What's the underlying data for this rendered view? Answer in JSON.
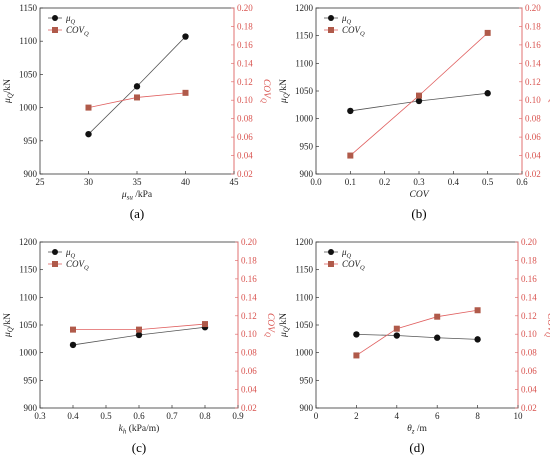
{
  "colors": {
    "mu_series": "#111111",
    "cov_series": "#b05a4a",
    "right_axis": "#e07070",
    "left_axis": "#333333"
  },
  "chart_data": [
    {
      "type": "line",
      "panel_label": "(a)",
      "xlabel_main": "μ",
      "xlabel_sub": "su",
      "xlabel_rest": " /kPa",
      "ylabel_main": "μ",
      "ylabel_sub": "Q",
      "ylabel_rest": "/kN",
      "y2label_main": "COV",
      "y2label_sub": "Q",
      "xlim": [
        25,
        45
      ],
      "xticks": [
        25,
        30,
        35,
        40,
        45
      ],
      "xtick_labels": [
        "25",
        "30",
        "35",
        "40",
        "45"
      ],
      "ylim": [
        900,
        1150
      ],
      "yticks": [
        900,
        950,
        1000,
        1050,
        1100,
        1150
      ],
      "y2lim": [
        0.02,
        0.2
      ],
      "y2ticks": [
        0.02,
        0.04,
        0.06,
        0.08,
        0.1,
        0.12,
        0.14,
        0.16,
        0.18,
        0.2
      ],
      "y2tick_labels": [
        "0.02",
        "0.04",
        "0.06",
        "0.08",
        "0.10",
        "0.12",
        "0.14",
        "0.16",
        "0.18",
        "0.20"
      ],
      "legend_position": "top-left",
      "series": [
        {
          "name_main": "μ",
          "name_sub": "Q",
          "axis": "left",
          "marker": "circle",
          "x": [
            30,
            35,
            40
          ],
          "values": [
            960,
            1032,
            1107
          ]
        },
        {
          "name_main": "COV",
          "name_sub": "Q",
          "axis": "right",
          "marker": "square",
          "x": [
            30,
            35,
            40
          ],
          "values": [
            0.092,
            0.103,
            0.108
          ]
        }
      ]
    },
    {
      "type": "line",
      "panel_label": "(b)",
      "xlabel_main": "COV",
      "xlabel_sub": "",
      "xlabel_rest": "",
      "ylabel_main": "μ",
      "ylabel_sub": "Q",
      "ylabel_rest": "/kN",
      "y2label_main": "COV",
      "y2label_sub": "Q",
      "xlim": [
        0,
        0.6
      ],
      "xticks": [
        0,
        0.1,
        0.2,
        0.3,
        0.4,
        0.5,
        0.6
      ],
      "xtick_labels": [
        "0.0",
        "0.1",
        "0.2",
        "0.3",
        "0.4",
        "0.5",
        "0.6"
      ],
      "ylim": [
        900,
        1200
      ],
      "yticks": [
        900,
        950,
        1000,
        1050,
        1100,
        1150,
        1200
      ],
      "y2lim": [
        0.02,
        0.2
      ],
      "y2ticks": [
        0.02,
        0.04,
        0.06,
        0.08,
        0.1,
        0.12,
        0.14,
        0.16,
        0.18,
        0.2
      ],
      "y2tick_labels": [
        "0.02",
        "0.04",
        "0.06",
        "0.08",
        "0.10",
        "0.12",
        "0.14",
        "0.16",
        "0.18",
        "0.20"
      ],
      "legend_position": "top-left",
      "series": [
        {
          "name_main": "μ",
          "name_sub": "Q",
          "axis": "left",
          "marker": "circle",
          "x": [
            0.1,
            0.3,
            0.5
          ],
          "values": [
            1014,
            1032,
            1046
          ]
        },
        {
          "name_main": "COV",
          "name_sub": "Q",
          "axis": "right",
          "marker": "square",
          "x": [
            0.1,
            0.3,
            0.5
          ],
          "values": [
            0.04,
            0.105,
            0.173
          ]
        }
      ]
    },
    {
      "type": "line",
      "panel_label": "(c)",
      "xlabel_main": "k",
      "xlabel_sub": "h",
      "xlabel_rest": " (kPa/m)",
      "ylabel_main": "μ",
      "ylabel_sub": "Q",
      "ylabel_rest": "/kN",
      "y2label_main": "COV",
      "y2label_sub": "Q",
      "xlim": [
        0.3,
        0.9
      ],
      "xticks": [
        0.3,
        0.4,
        0.5,
        0.6,
        0.7,
        0.8,
        0.9
      ],
      "xtick_labels": [
        "0.3",
        "0.4",
        "0.5",
        "0.6",
        "0.7",
        "0.8",
        "0.9"
      ],
      "ylim": [
        900,
        1200
      ],
      "yticks": [
        900,
        950,
        1000,
        1050,
        1100,
        1150,
        1200
      ],
      "y2lim": [
        0.02,
        0.2
      ],
      "y2ticks": [
        0.02,
        0.04,
        0.06,
        0.08,
        0.1,
        0.12,
        0.14,
        0.16,
        0.18,
        0.2
      ],
      "y2tick_labels": [
        "0.02",
        "0.04",
        "0.06",
        "0.08",
        "0.10",
        "0.12",
        "0.14",
        "0.16",
        "0.18",
        "0.20"
      ],
      "legend_position": "top-left",
      "series": [
        {
          "name_main": "μ",
          "name_sub": "Q",
          "axis": "left",
          "marker": "circle",
          "x": [
            0.4,
            0.6,
            0.8
          ],
          "values": [
            1014,
            1032,
            1046
          ]
        },
        {
          "name_main": "COV",
          "name_sub": "Q",
          "axis": "right",
          "marker": "square",
          "x": [
            0.4,
            0.6,
            0.8
          ],
          "values": [
            0.105,
            0.105,
            0.111
          ]
        }
      ]
    },
    {
      "type": "line",
      "panel_label": "(d)",
      "xlabel_main": "θ",
      "xlabel_sub": "z",
      "xlabel_rest": " /m",
      "ylabel_main": "μ",
      "ylabel_sub": "Q",
      "ylabel_rest": "/kN",
      "y2label_main": "COV",
      "y2label_sub": "Q",
      "xlim": [
        0,
        10
      ],
      "xticks": [
        0,
        2,
        4,
        6,
        8,
        10
      ],
      "xtick_labels": [
        "0",
        "2",
        "4",
        "6",
        "8",
        "10"
      ],
      "ylim": [
        900,
        1200
      ],
      "yticks": [
        900,
        950,
        1000,
        1050,
        1100,
        1150,
        1200
      ],
      "y2lim": [
        0.02,
        0.2
      ],
      "y2ticks": [
        0.02,
        0.04,
        0.06,
        0.08,
        0.1,
        0.12,
        0.14,
        0.16,
        0.18,
        0.2
      ],
      "y2tick_labels": [
        "0.02",
        "0.04",
        "0.06",
        "0.08",
        "0.10",
        "0.12",
        "0.14",
        "0.16",
        "0.18",
        "0.20"
      ],
      "legend_position": "top-left",
      "series": [
        {
          "name_main": "μ",
          "name_sub": "Q",
          "axis": "left",
          "marker": "circle",
          "x": [
            2,
            4,
            6,
            8
          ],
          "values": [
            1033,
            1031,
            1027,
            1024
          ]
        },
        {
          "name_main": "COV",
          "name_sub": "Q",
          "axis": "right",
          "marker": "square",
          "x": [
            2,
            4,
            6,
            8
          ],
          "values": [
            0.077,
            0.106,
            0.119,
            0.126
          ]
        }
      ]
    }
  ]
}
